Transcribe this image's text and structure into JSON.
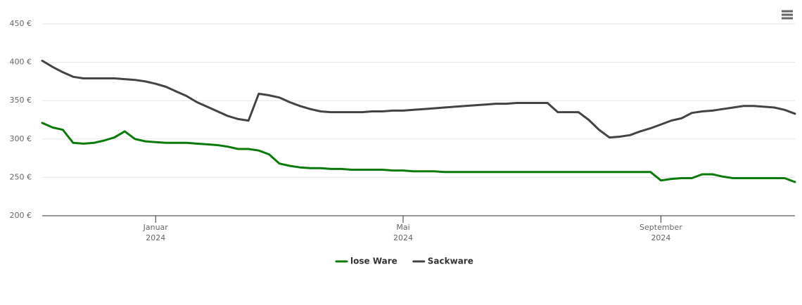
{
  "chart_data": {
    "type": "line",
    "categories": [
      null,
      null,
      null,
      null,
      null,
      null,
      null,
      null,
      null,
      null,
      null,
      "Januar\n2024",
      null,
      null,
      null,
      null,
      null,
      null,
      null,
      null,
      null,
      null,
      null,
      null,
      null,
      null,
      null,
      null,
      null,
      null,
      null,
      null,
      null,
      null,
      null,
      "Mai\n2024",
      null,
      null,
      null,
      null,
      null,
      null,
      null,
      null,
      null,
      null,
      null,
      null,
      null,
      null,
      null,
      null,
      null,
      null,
      null,
      null,
      null,
      null,
      null,
      null,
      "September\n2024",
      null,
      null,
      null,
      null,
      null,
      null,
      null,
      null,
      null,
      null,
      null,
      null,
      null
    ],
    "series": [
      {
        "name": "lose Ware",
        "color": "#0a7a0a",
        "values": [
          321,
          315,
          312,
          295,
          294,
          295,
          298,
          302,
          310,
          300,
          297,
          296,
          295,
          295,
          295,
          294,
          293,
          292,
          290,
          287,
          287,
          285,
          280,
          268,
          265,
          263,
          262,
          262,
          261,
          261,
          260,
          260,
          260,
          260,
          259,
          259,
          258,
          258,
          258,
          257,
          257,
          257,
          257,
          257,
          257,
          257,
          257,
          257,
          257,
          257,
          257,
          257,
          257,
          257,
          257,
          257,
          257,
          257,
          257,
          257,
          246,
          248,
          249,
          249,
          254,
          254,
          251,
          249,
          249,
          249,
          249,
          249,
          249,
          244
        ]
      },
      {
        "name": "Sackware",
        "color": "#434343",
        "values": [
          402,
          394,
          387,
          381,
          379,
          379,
          379,
          379,
          378,
          377,
          375,
          372,
          368,
          362,
          356,
          348,
          342,
          336,
          330,
          326,
          324,
          359,
          357,
          354,
          348,
          343,
          339,
          336,
          335,
          335,
          335,
          335,
          336,
          336,
          337,
          337,
          338,
          339,
          340,
          341,
          342,
          343,
          344,
          345,
          346,
          346,
          347,
          347,
          347,
          347,
          335,
          335,
          335,
          325,
          312,
          302,
          303,
          305,
          310,
          314,
          319,
          324,
          327,
          334,
          336,
          337,
          339,
          341,
          343,
          343,
          342,
          341,
          338,
          333
        ]
      }
    ],
    "ylim": [
      200,
      450
    ],
    "yticks": [
      {
        "value": 200,
        "label": "200 €"
      },
      {
        "value": 250,
        "label": "250 €"
      },
      {
        "value": 300,
        "label": "300 €"
      },
      {
        "value": 350,
        "label": "350 €"
      },
      {
        "value": 400,
        "label": "400 €"
      },
      {
        "value": 450,
        "label": "450 €"
      }
    ],
    "grid": true
  }
}
